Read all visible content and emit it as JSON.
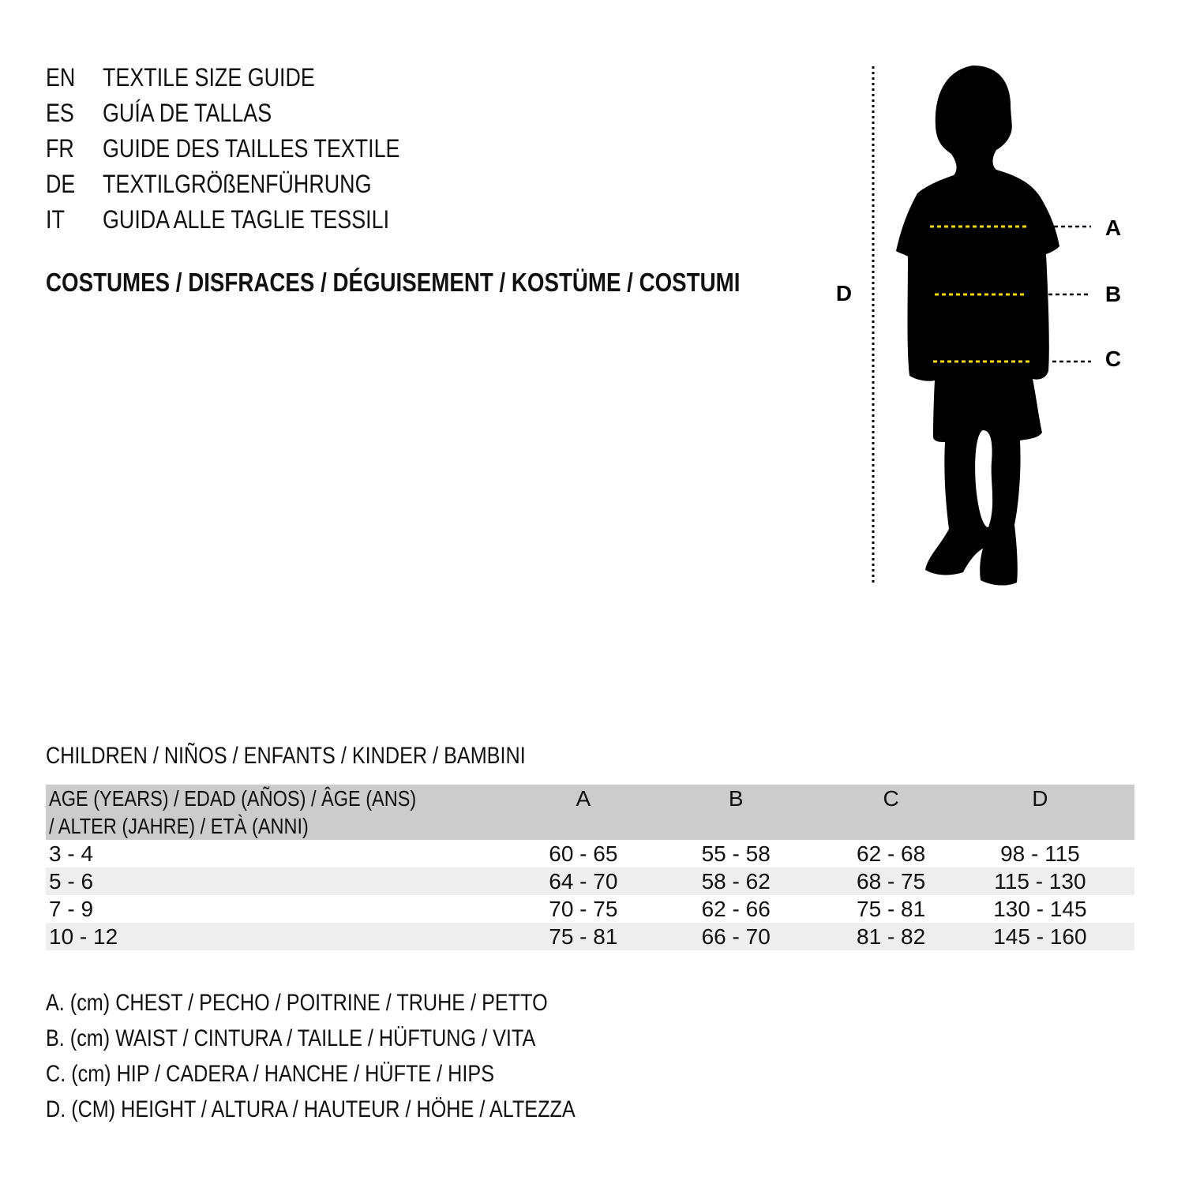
{
  "guide_titles": [
    {
      "code": "EN",
      "title": "TEXTILE SIZE GUIDE"
    },
    {
      "code": "ES",
      "title": "GUÍA DE TALLAS"
    },
    {
      "code": "FR",
      "title": "GUIDE DES TAILLES TEXTILE"
    },
    {
      "code": "DE",
      "title": "TEXTILGRÖßENFÜHRUNG"
    },
    {
      "code": "IT",
      "title": "GUIDA ALLE TAGLIE TESSILI"
    }
  ],
  "category": "COSTUMES / DISFRACES / DÉGUISEMENT / KOSTÜME / COSTUMI",
  "diagram": {
    "labels": {
      "a": "A",
      "b": "B",
      "c": "C",
      "d": "D"
    },
    "silhouette_color": "#000000",
    "measure_line_color": "#f5d90a"
  },
  "table": {
    "title": "CHILDREN / NIÑOS / ENFANTS / KINDER / BAMBINI",
    "headers": [
      "AGE (YEARS) / EDAD (AÑOS) / ÂGE (ANS) / ALTER (JAHRE) / ETÀ (ANNI)",
      "A",
      "B",
      "C",
      "D"
    ],
    "rows": [
      [
        "3 - 4",
        "60 - 65",
        "55 - 58",
        "62 - 68",
        "98 - 115"
      ],
      [
        "5 - 6",
        "64 - 70",
        "58 - 62",
        "68 - 75",
        "115 - 130"
      ],
      [
        "7 - 9",
        "70 - 75",
        "62 - 66",
        "75 - 81",
        "130 - 145"
      ],
      [
        "10 - 12",
        "75 - 81",
        "66 - 70",
        "81 - 82",
        "145 - 160"
      ]
    ],
    "header_bg": "#cccccc",
    "stripe_bg": "#eeeeee"
  },
  "legend": [
    "A. (cm) CHEST / PECHO / POITRINE / TRUHE / PETTO",
    "B. (cm) WAIST / CINTURA / TAILLE / HÜFTUNG / VITA",
    "C. (cm) HIP / CADERA / HANCHE / HÜFTE / HIPS",
    "D. (CM) HEIGHT / ALTURA / HAUTEUR / HÖHE / ALTEZZA"
  ]
}
